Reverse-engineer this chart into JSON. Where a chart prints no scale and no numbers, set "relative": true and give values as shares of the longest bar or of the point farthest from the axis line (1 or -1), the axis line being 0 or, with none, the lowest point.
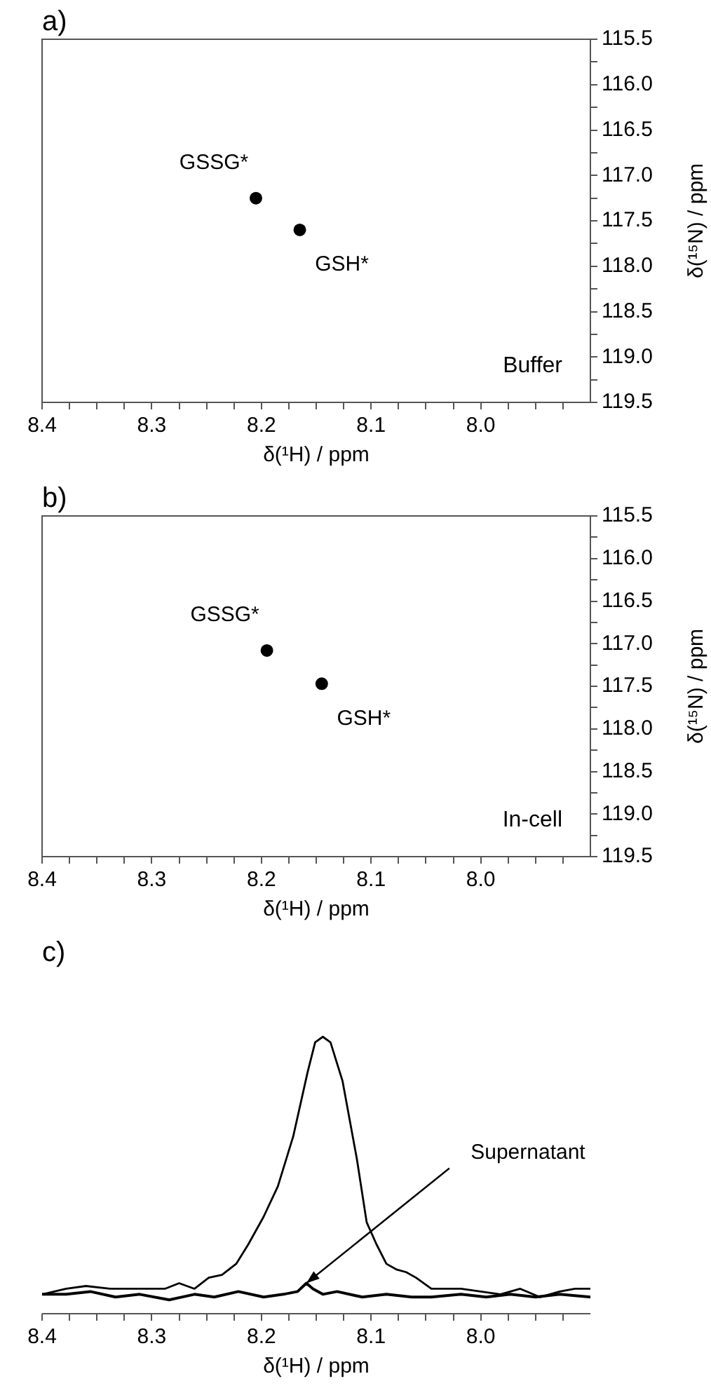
{
  "chart_data": [
    {
      "type": "scatter",
      "title": "a)",
      "xlabel": "δ(¹H) / ppm",
      "ylabel": "δ(¹⁵N) / ppm",
      "marker": "circle",
      "grid": false,
      "legend": false,
      "xlim": [
        8.4,
        7.9
      ],
      "xticks": [
        8.4,
        {
          "value": 8.375,
          "label": null
        },
        {
          "value": 8.35,
          "label": null
        },
        {
          "value": 8.325,
          "label": null
        },
        8.3,
        {
          "value": 8.275,
          "label": null
        },
        {
          "value": 8.25,
          "label": null
        },
        {
          "value": 8.225,
          "label": null
        },
        8.2,
        {
          "value": 8.175,
          "label": null
        },
        {
          "value": 8.15,
          "label": null
        },
        {
          "value": 8.125,
          "label": null
        },
        8.1,
        {
          "value": 8.075,
          "label": null
        },
        {
          "value": 8.05,
          "label": null
        },
        {
          "value": 8.025,
          "label": null
        },
        {
          "value": 8,
          "label": "8.0"
        },
        {
          "value": 7.975,
          "label": null
        },
        {
          "value": 7.95,
          "label": null
        },
        {
          "value": 7.925,
          "label": null
        }
      ],
      "ylim": [
        119.5,
        115.5
      ],
      "yticks": [
        115.5,
        {
          "value": 115.75,
          "label": null
        },
        {
          "value": 116,
          "label": "116.0"
        },
        {
          "value": 116.25,
          "label": null
        },
        116.5,
        {
          "value": 116.75,
          "label": null
        },
        {
          "value": 117,
          "label": "117.0"
        },
        {
          "value": 117.25,
          "label": null
        },
        117.5,
        {
          "value": 117.75,
          "label": null
        },
        {
          "value": 118,
          "label": "118.0"
        },
        {
          "value": 118.25,
          "label": null
        },
        118.5,
        {
          "value": 118.75,
          "label": null
        },
        {
          "value": 119,
          "label": "119.0"
        },
        {
          "value": 119.25,
          "label": null
        },
        119.5
      ],
      "series": [
        {
          "color": "#000000",
          "x": [
            8.205,
            8.165
          ],
          "values": [
            117.25,
            117.6
          ]
        }
      ],
      "annotations": [
        {
          "text": "GSSG*",
          "x": 8.205,
          "y": 117.25
        },
        {
          "text": "GSH*",
          "x": 8.165,
          "y": 117.6
        },
        "Buffer"
      ]
    },
    {
      "type": "scatter",
      "title": "b)",
      "xlabel": "δ(¹H) / ppm",
      "ylabel": "δ(¹⁵N) / ppm",
      "marker": "circle",
      "grid": false,
      "legend": false,
      "xlim": [
        8.4,
        7.9
      ],
      "xticks": [
        8.4,
        {
          "value": 8.375,
          "label": null
        },
        {
          "value": 8.35,
          "label": null
        },
        {
          "value": 8.325,
          "label": null
        },
        8.3,
        {
          "value": 8.275,
          "label": null
        },
        {
          "value": 8.25,
          "label": null
        },
        {
          "value": 8.225,
          "label": null
        },
        8.2,
        {
          "value": 8.175,
          "label": null
        },
        {
          "value": 8.15,
          "label": null
        },
        {
          "value": 8.125,
          "label": null
        },
        8.1,
        {
          "value": 8.075,
          "label": null
        },
        {
          "value": 8.05,
          "label": null
        },
        {
          "value": 8.025,
          "label": null
        },
        {
          "value": 8,
          "label": "8.0"
        },
        {
          "value": 7.975,
          "label": null
        },
        {
          "value": 7.95,
          "label": null
        },
        {
          "value": 7.925,
          "label": null
        }
      ],
      "ylim": [
        119.5,
        115.5
      ],
      "yticks": [
        115.5,
        {
          "value": 115.75,
          "label": null
        },
        {
          "value": 116,
          "label": "116.0"
        },
        {
          "value": 116.25,
          "label": null
        },
        116.5,
        {
          "value": 116.75,
          "label": null
        },
        {
          "value": 117,
          "label": "117.0"
        },
        {
          "value": 117.25,
          "label": null
        },
        117.5,
        {
          "value": 117.75,
          "label": null
        },
        {
          "value": 118,
          "label": "118.0"
        },
        {
          "value": 118.25,
          "label": null
        },
        118.5,
        {
          "value": 118.75,
          "label": null
        },
        {
          "value": 119,
          "label": "119.0"
        },
        {
          "value": 119.25,
          "label": null
        },
        119.5
      ],
      "series": [
        {
          "color": "#000000",
          "x": [
            8.195,
            8.145
          ],
          "values": [
            117.08,
            117.47
          ]
        }
      ],
      "annotations": [
        {
          "text": "GSSG*",
          "x": 8.195,
          "y": 117.08
        },
        {
          "text": "GSH*",
          "x": 8.145,
          "y": 117.47
        },
        "In-cell"
      ]
    },
    {
      "type": "line",
      "title": "c)",
      "xlabel": "δ(¹H) / ppm",
      "relative": true,
      "grid": false,
      "legend": false,
      "line_style": "solid",
      "xlim": [
        8.4,
        7.9
      ],
      "xticks": [
        8.4,
        {
          "value": 8.375,
          "label": null
        },
        {
          "value": 8.35,
          "label": null
        },
        {
          "value": 8.325,
          "label": null
        },
        8.3,
        {
          "value": 8.275,
          "label": null
        },
        {
          "value": 8.25,
          "label": null
        },
        {
          "value": 8.225,
          "label": null
        },
        8.2,
        {
          "value": 8.175,
          "label": null
        },
        {
          "value": 8.15,
          "label": null
        },
        {
          "value": 8.125,
          "label": null
        },
        8.1,
        {
          "value": 8.075,
          "label": null
        },
        {
          "value": 8.05,
          "label": null
        },
        {
          "value": 8.025,
          "label": null
        },
        {
          "value": 8,
          "label": "8.0"
        },
        {
          "value": 7.975,
          "label": null
        },
        {
          "value": 7.95,
          "label": null
        },
        {
          "value": 7.925,
          "label": null
        }
      ],
      "series": [
        {
          "color": "#000000",
          "x": [
            8.4,
            8.378,
            8.36,
            8.338,
            8.32,
            8.288,
            8.275,
            8.261,
            8.248,
            8.236,
            8.223,
            8.212,
            8.198,
            8.185,
            8.171,
            8.158,
            8.151,
            8.144,
            8.137,
            8.126,
            8.113,
            8.104,
            8.095,
            8.086,
            8.077,
            8.068,
            8.059,
            8.045,
            8.036,
            8.018,
            8.0,
            7.982,
            7.964,
            7.946,
            7.928,
            7.914,
            7.9
          ],
          "values": [
            0.07,
            0.09,
            0.1,
            0.09,
            0.09,
            0.09,
            0.11,
            0.09,
            0.13,
            0.14,
            0.18,
            0.25,
            0.35,
            0.46,
            0.64,
            0.87,
            0.98,
            1,
            0.98,
            0.84,
            0.56,
            0.33,
            0.25,
            0.18,
            0.16,
            0.15,
            0.13,
            0.09,
            0.09,
            0.09,
            0.08,
            0.07,
            0.09,
            0.06,
            0.08,
            0.09,
            0.09
          ]
        },
        {
          "color": "#000000",
          "x": [
            8.4,
            8.378,
            8.356,
            8.333,
            8.311,
            8.284,
            8.261,
            8.243,
            8.221,
            8.198,
            8.18,
            8.167,
            8.159,
            8.153,
            8.144,
            8.131,
            8.108,
            8.086,
            8.063,
            8.045,
            8.018,
            7.995,
            7.973,
            7.95,
            7.928,
            7.9
          ],
          "values": [
            0.07,
            0.07,
            0.08,
            0.06,
            0.07,
            0.05,
            0.07,
            0.06,
            0.08,
            0.06,
            0.07,
            0.08,
            0.11,
            0.09,
            0.07,
            0.08,
            0.06,
            0.07,
            0.06,
            0.06,
            0.07,
            0.06,
            0.07,
            0.06,
            0.07,
            0.06
          ]
        }
      ],
      "annotations": [
        {
          "text": "Supernatant",
          "x": 8.159,
          "y": 0.11
        }
      ]
    }
  ]
}
